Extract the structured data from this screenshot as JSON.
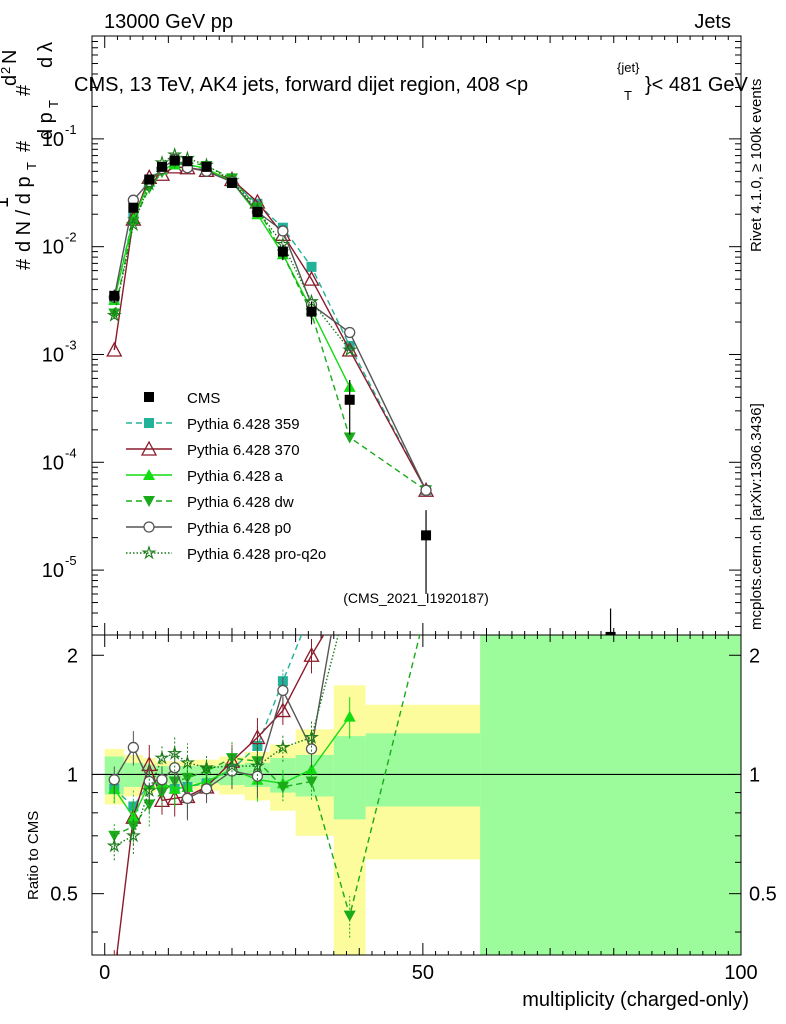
{
  "header": {
    "energy": "13000 GeV pp",
    "category": "Jets",
    "title": "CMS, 13 TeV, AK4 jets, forward dijet region, 408 <p",
    "title_pt_sup": "{jet}",
    "title_pt_sub": "T",
    "title_end": "}< 481 GeV",
    "rivet": "Rivet 4.1.0, ≥ 100k events",
    "mcplots": "mcplots.cern.ch [arXiv:1306.3436]",
    "watermark": "(CMS_2021_I1920187)"
  },
  "chart_data": {
    "type": "line",
    "xlabel": "multiplicity (charged-only)",
    "ylabel_top": "1/N dN/dp_T dλ (normalised)",
    "ylabel_bottom": "Ratio to CMS",
    "xlim": [
      -2,
      100
    ],
    "ylim_main": [
      2.5e-06,
      0.9
    ],
    "ylim_ratio": [
      0.35,
      2.25
    ],
    "x_ticks": [
      0,
      50,
      100
    ],
    "y_ticks_main": [
      "10^-5",
      "10^-4",
      "10^-3",
      "10^-2",
      "10^-1"
    ],
    "y_ticks_ratio": [
      "0.5",
      "1",
      "2"
    ],
    "bin_edges": [
      0,
      3,
      6,
      8,
      10,
      12,
      14,
      18,
      22,
      26,
      30,
      36,
      41,
      59,
      100
    ],
    "cms": {
      "name": "CMS",
      "x": [
        1.5,
        4.5,
        7.0,
        9.0,
        11.0,
        13.0,
        16.0,
        20.0,
        24.0,
        28.0,
        32.5,
        38.5,
        50.5,
        79.5
      ],
      "values": [
        0.0035,
        0.023,
        0.042,
        0.055,
        0.063,
        0.062,
        0.055,
        0.039,
        0.021,
        0.009,
        0.0025,
        0.00038,
        2.1e-05,
        2.4e-06
      ],
      "err_lo": [
        0.0005,
        0.002,
        0.004,
        0.005,
        0.006,
        0.006,
        0.005,
        0.004,
        0.002,
        0.0015,
        0.0006,
        0.0002,
        1.5e-05,
        2e-06
      ],
      "err_hi": [
        0.0005,
        0.002,
        0.004,
        0.005,
        0.006,
        0.006,
        0.005,
        0.004,
        0.002,
        0.0015,
        0.0006,
        0.0002,
        1.5e-05,
        2e-06
      ]
    },
    "series": [
      {
        "name": "Pythia 6.428 359",
        "color": "#22b29a",
        "dash": "6,4",
        "marker": "square",
        "x": [
          1.5,
          4.5,
          7.0,
          9.0,
          11.0,
          13.0,
          16.0,
          20.0,
          24.0,
          28.0,
          32.5,
          38.5,
          50.5
        ],
        "values": [
          0.0032,
          0.019,
          0.04,
          0.052,
          0.058,
          0.058,
          0.052,
          0.04,
          0.025,
          0.015,
          0.0065,
          0.0012,
          5.5e-05
        ],
        "ratio": [
          0.92,
          0.83,
          0.95,
          0.95,
          0.92,
          0.93,
          0.95,
          1.03,
          1.18,
          1.72,
          2.6,
          3.2,
          2.6
        ]
      },
      {
        "name": "Pythia 6.428 370",
        "color": "#8b1a2b",
        "dash": "",
        "marker": "triangle-open",
        "x": [
          1.5,
          4.5,
          7.0,
          9.0,
          11.0,
          13.0,
          16.0,
          20.0,
          24.0,
          28.0,
          32.5,
          38.5,
          50.5
        ],
        "values": [
          0.0011,
          0.018,
          0.044,
          0.047,
          0.055,
          0.054,
          0.051,
          0.042,
          0.026,
          0.013,
          0.005,
          0.0011,
          5.5e-05
        ],
        "ratio": [
          0.31,
          0.78,
          1.06,
          0.86,
          0.87,
          0.88,
          0.93,
          1.08,
          1.24,
          1.45,
          2.0,
          2.9,
          2.6
        ]
      },
      {
        "name": "Pythia 6.428 a",
        "color": "#11dd11",
        "dash": "",
        "marker": "triangle",
        "x": [
          1.5,
          4.5,
          7.0,
          9.0,
          11.0,
          13.0,
          16.0,
          20.0,
          24.0,
          28.0,
          32.5,
          38.5
        ],
        "values": [
          0.0032,
          0.018,
          0.04,
          0.052,
          0.058,
          0.058,
          0.053,
          0.04,
          0.02,
          0.0085,
          0.0026,
          0.0005
        ],
        "ratio": [
          0.92,
          0.78,
          0.95,
          0.95,
          0.92,
          0.93,
          0.96,
          1.03,
          0.97,
          0.95,
          1.03,
          1.4
        ]
      },
      {
        "name": "Pythia 6.428 dw",
        "color": "#1aaa1a",
        "dash": "6,4",
        "marker": "triangle-down",
        "x": [
          1.5,
          4.5,
          7.0,
          9.0,
          11.0,
          13.0,
          16.0,
          20.0,
          24.0,
          28.0,
          32.5,
          38.5,
          50.5
        ],
        "values": [
          0.0024,
          0.017,
          0.035,
          0.049,
          0.06,
          0.061,
          0.056,
          0.043,
          0.023,
          0.0085,
          0.0024,
          0.00017,
          5.5e-05
        ],
        "ratio": [
          0.7,
          0.74,
          0.84,
          0.9,
          0.96,
          0.98,
          1.02,
          1.1,
          1.08,
          0.93,
          0.96,
          0.44,
          2.6
        ]
      },
      {
        "name": "Pythia 6.428 p0",
        "color": "#555555",
        "dash": "",
        "marker": "circle-open",
        "x": [
          1.5,
          4.5,
          7.0,
          9.0,
          11.0,
          13.0,
          16.0,
          20.0,
          24.0,
          28.0,
          32.5,
          38.5,
          50.5
        ],
        "values": [
          0.0034,
          0.027,
          0.04,
          0.053,
          0.065,
          0.054,
          0.05,
          0.04,
          0.021,
          0.014,
          0.0029,
          0.0016,
          5.5e-05
        ],
        "ratio": [
          0.97,
          1.17,
          0.96,
          0.97,
          1.04,
          0.87,
          0.92,
          1.02,
          0.99,
          1.63,
          1.16,
          4.2,
          2.6
        ]
      },
      {
        "name": "Pythia 6.428 pro-q2o",
        "color": "#1a7a1a",
        "dash": "1.5,2",
        "marker": "star",
        "x": [
          1.5,
          4.5,
          7.0,
          9.0,
          11.0,
          13.0,
          16.0,
          20.0,
          24.0,
          28.0,
          32.5,
          38.5
        ],
        "values": [
          0.0023,
          0.016,
          0.038,
          0.06,
          0.071,
          0.066,
          0.057,
          0.041,
          0.022,
          0.0105,
          0.0031,
          0.0011
        ],
        "ratio": [
          0.66,
          0.7,
          0.91,
          1.1,
          1.13,
          1.07,
          1.04,
          1.05,
          1.05,
          1.17,
          1.24,
          2.9
        ]
      }
    ],
    "ratio_bands": {
      "stat_color": "#9cfc9c",
      "syst_color": "#fcfc9c",
      "inner": [
        [
          0.89,
          1.11
        ],
        [
          0.93,
          1.07
        ],
        [
          0.94,
          1.06
        ],
        [
          0.95,
          1.05
        ],
        [
          0.95,
          1.05
        ],
        [
          0.95,
          1.05
        ],
        [
          0.95,
          1.05
        ],
        [
          0.94,
          1.06
        ],
        [
          0.93,
          1.07
        ],
        [
          0.9,
          1.1
        ],
        [
          0.88,
          1.12
        ],
        [
          0.77,
          1.25
        ],
        [
          0.83,
          1.27
        ],
        [
          0.35,
          2.25
        ]
      ],
      "outer": [
        [
          0.84,
          1.16
        ],
        [
          0.88,
          1.12
        ],
        [
          0.9,
          1.1
        ],
        [
          0.92,
          1.08
        ],
        [
          0.92,
          1.08
        ],
        [
          0.92,
          1.08
        ],
        [
          0.91,
          1.09
        ],
        [
          0.89,
          1.11
        ],
        [
          0.86,
          1.14
        ],
        [
          0.81,
          1.19
        ],
        [
          0.7,
          1.3
        ],
        [
          0.35,
          1.68
        ],
        [
          0.61,
          1.5
        ],
        [
          0.35,
          2.25
        ]
      ]
    }
  }
}
